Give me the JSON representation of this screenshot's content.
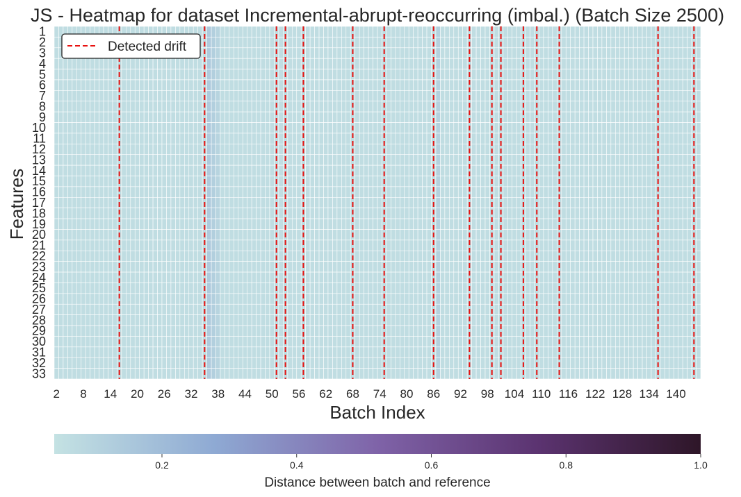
{
  "chart_data": {
    "type": "heatmap",
    "title": "JS - Heatmap for dataset Incremental-abrupt-reoccurring (imbal.) (Batch Size 2500)",
    "xlabel": "Batch Index",
    "ylabel": "Features",
    "x_tick_labels": [
      "2",
      "8",
      "14",
      "20",
      "26",
      "32",
      "38",
      "44",
      "50",
      "56",
      "62",
      "68",
      "74",
      "80",
      "86",
      "92",
      "98",
      "104",
      "110",
      "116",
      "122",
      "128",
      "134",
      "140"
    ],
    "y_tick_labels": [
      "1",
      "2",
      "3",
      "4",
      "5",
      "6",
      "7",
      "8",
      "9",
      "10",
      "11",
      "12",
      "13",
      "14",
      "15",
      "16",
      "17",
      "18",
      "19",
      "20",
      "21",
      "22",
      "23",
      "24",
      "25",
      "26",
      "27",
      "28",
      "29",
      "30",
      "31",
      "32",
      "33"
    ],
    "batch_range": [
      2,
      145
    ],
    "feature_count": 33,
    "cell_value_baseline": 0.06,
    "elevated_batches": [
      {
        "batch": 36,
        "value": 0.14
      },
      {
        "batch": 37,
        "value": 0.12
      },
      {
        "batch": 38,
        "value": 0.1
      },
      {
        "batch": 87,
        "value": 0.11
      }
    ],
    "drift_batches": [
      16,
      35,
      51,
      53,
      57,
      68,
      75,
      86,
      94,
      99,
      101,
      106,
      109,
      114,
      136,
      144
    ],
    "legend": {
      "label": "Detected drift",
      "placement": "upper-left"
    },
    "colorbar": {
      "label": "Distance between batch and reference",
      "range": [
        0.04,
        1.0
      ],
      "ticks": [
        "0.2",
        "0.4",
        "0.6",
        "0.8",
        "1.0"
      ],
      "tick_values": [
        0.2,
        0.4,
        0.6,
        0.8,
        1.0
      ],
      "colors": [
        "#c4e2e3",
        "#8ea9d3",
        "#7f63a8",
        "#5b3370",
        "#2e1628"
      ]
    },
    "grid": true
  }
}
